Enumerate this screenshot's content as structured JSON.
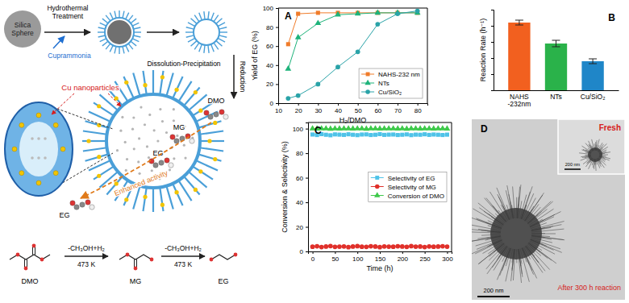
{
  "chart_data": [
    {
      "type": "line",
      "title": "A",
      "x_label": "H₂/DMO",
      "y_label": "Yield of EG (%)",
      "x": [
        15,
        20,
        30,
        40,
        50,
        60,
        70,
        80
      ],
      "xlim": [
        10,
        85
      ],
      "xticks": [
        10,
        20,
        30,
        40,
        50,
        60,
        70,
        80
      ],
      "ylim": [
        0,
        100
      ],
      "yticks": [
        0,
        20,
        40,
        60,
        80,
        100
      ],
      "legend": "lower right",
      "series": [
        {
          "name": "NAHS-232 nm",
          "color": "#f07c2a",
          "marker": "square",
          "line_style": "solid",
          "values": [
            62,
            94,
            95,
            95,
            95,
            95,
            95,
            95
          ]
        },
        {
          "name": "NTs",
          "color": "#1db37a",
          "marker": "triangle",
          "line_style": "solid",
          "values": [
            36,
            69,
            84,
            93,
            94,
            95,
            95,
            95
          ]
        },
        {
          "name": "Cu/SiO₂",
          "color": "#2aa3a8",
          "marker": "circle",
          "line_style": "solid",
          "values": [
            5,
            8,
            20,
            38,
            54,
            83,
            94,
            97
          ]
        }
      ]
    },
    {
      "type": "bar",
      "title": "B",
      "y_label": "Reaction Rate (h⁻¹)",
      "categories": [
        "NAHS-232nm",
        "NTs",
        "Cu/SiO₂"
      ],
      "values": [
        42,
        29,
        18
      ],
      "errors": [
        1.5,
        2,
        1.5
      ],
      "colors": [
        "#f2601f",
        "#2ab24a",
        "#1f86c8"
      ],
      "ylim": [
        0,
        50
      ],
      "yticks": [
        0,
        10,
        20,
        30,
        40,
        50
      ],
      "tick_labels": "x"
    },
    {
      "type": "line",
      "title": "C",
      "x_label": "Time (h)",
      "y_label": "Conversion & Selectivity (%)",
      "x": [
        0,
        10,
        20,
        30,
        40,
        50,
        60,
        70,
        80,
        90,
        100,
        110,
        120,
        130,
        140,
        150,
        160,
        170,
        180,
        190,
        200,
        210,
        220,
        230,
        240,
        250,
        260,
        270,
        280,
        290,
        300
      ],
      "xlim": [
        -10,
        310
      ],
      "xticks": [
        0,
        50,
        100,
        150,
        200,
        250,
        300
      ],
      "ylim": [
        0,
        105
      ],
      "yticks": [
        0,
        20,
        40,
        60,
        80,
        100
      ],
      "legend": "center right",
      "series": [
        {
          "name": "Selectivity of EG",
          "color": "#4fc3e8",
          "marker": "square",
          "line_style": "solid",
          "values": [
            95.2,
            94.8,
            95.5,
            95,
            94.6,
            95.3,
            95.1,
            94.9,
            95.4,
            95,
            94.7,
            95.2,
            95.3,
            94.8,
            95,
            95.5,
            94.9,
            95.1,
            95.2,
            94.8,
            95,
            95.3,
            94.7,
            95.1,
            95,
            95.4,
            94.9,
            95.2,
            95,
            94.8,
            95.1
          ]
        },
        {
          "name": "Selectivity of MG",
          "color": "#e0302a",
          "marker": "circle",
          "line_style": "solid",
          "values": [
            3.8,
            4.2,
            3.6,
            4,
            4.4,
            3.7,
            3.9,
            4.1,
            3.5,
            4,
            4.3,
            3.8,
            3.7,
            4.2,
            4,
            3.5,
            4.1,
            3.9,
            3.8,
            4.2,
            4,
            3.7,
            4.3,
            3.9,
            4,
            3.6,
            4.1,
            3.8,
            4,
            4.2,
            3.9
          ]
        },
        {
          "name": "Conversion of DMO",
          "color": "#3ec94a",
          "marker": "triangle",
          "line_style": "solid",
          "values": [
            100,
            99.9,
            100,
            100,
            99.8,
            100,
            99.9,
            100,
            100,
            99.9,
            100,
            100,
            99.8,
            100,
            100,
            99.9,
            100,
            100,
            100,
            99.9,
            100,
            99.8,
            100,
            100,
            99.9,
            100,
            100,
            99.9,
            100,
            100,
            99.9
          ]
        }
      ]
    }
  ],
  "schematic": {
    "silica_sphere": "Silica Sphere",
    "treatment": "Hydrothermal Treatment",
    "reagent": "Cuprammonia",
    "step2": "Dissolution-Precipitation",
    "step3": "Reduction",
    "nanoparticles": "Cu nanoparticles",
    "activity": "Enhanced activity",
    "molecules": [
      "DMO",
      "MG",
      "EG",
      "EG"
    ]
  },
  "reaction": {
    "species": [
      "DMO",
      "MG",
      "EG"
    ],
    "steps": [
      {
        "reagents": "-CH₃OH+H₂",
        "condition": "473 K"
      },
      {
        "reagents": "-CH₃OH+H₂",
        "condition": "473 K"
      }
    ]
  },
  "micrograph": {
    "title": "D",
    "inset": "Fresh",
    "caption": "After 300 h reaction",
    "scale_bars": [
      "200 nm",
      "200 nm"
    ]
  }
}
